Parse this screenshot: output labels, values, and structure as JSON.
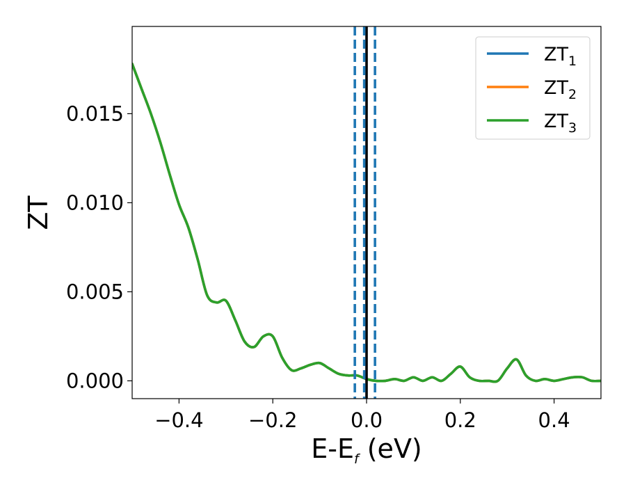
{
  "chart_data": {
    "type": "line",
    "xlabel": "E-E",
    "xlabel_sub": "f",
    "xlabel_unit": " (eV)",
    "ylabel": "ZT",
    "xlim": [
      -0.5,
      0.5
    ],
    "ylim": [
      -0.001,
      0.0199
    ],
    "xticks": [
      -0.4,
      -0.2,
      0.0,
      0.2,
      0.4
    ],
    "xtick_labels": [
      "−0.4",
      "−0.2",
      "0.0",
      "0.2",
      "0.4"
    ],
    "yticks": [
      0.0,
      0.005,
      0.01,
      0.015
    ],
    "ytick_labels": [
      "0.000",
      "0.005",
      "0.010",
      "0.015"
    ],
    "grid": false,
    "legend_position": "top-right",
    "x": [
      -0.5,
      -0.48,
      -0.46,
      -0.44,
      -0.42,
      -0.4,
      -0.38,
      -0.36,
      -0.34,
      -0.32,
      -0.3,
      -0.28,
      -0.26,
      -0.24,
      -0.22,
      -0.2,
      -0.18,
      -0.16,
      -0.14,
      -0.12,
      -0.1,
      -0.08,
      -0.06,
      -0.04,
      -0.02,
      0.0,
      0.02,
      0.04,
      0.06,
      0.08,
      0.1,
      0.12,
      0.14,
      0.16,
      0.18,
      0.2,
      0.22,
      0.24,
      0.26,
      0.28,
      0.3,
      0.32,
      0.34,
      0.36,
      0.38,
      0.4,
      0.42,
      0.44,
      0.46,
      0.48,
      0.5
    ],
    "series": [
      {
        "name": "ZT",
        "name_sub": "1",
        "color": "#1f77b4",
        "values": [
          0.0178,
          0.0164,
          0.015,
          0.0134,
          0.0116,
          0.0099,
          0.0086,
          0.0068,
          0.0048,
          0.0044,
          0.0045,
          0.0034,
          0.0022,
          0.0019,
          0.0025,
          0.0025,
          0.0013,
          0.0006,
          0.0007,
          0.0009,
          0.001,
          0.0007,
          0.0004,
          0.0003,
          0.0003,
          0.0001,
          0.0,
          0.0,
          0.0001,
          0.0,
          0.0002,
          0.0,
          0.0002,
          0.0,
          0.0004,
          0.0008,
          0.0002,
          0.0,
          0.0,
          0.0,
          0.0007,
          0.0012,
          0.0003,
          0.0,
          0.0001,
          0.0,
          0.0001,
          0.0002,
          0.0002,
          0.0,
          0.0
        ]
      },
      {
        "name": "ZT",
        "name_sub": "2",
        "color": "#ff7f0e",
        "values": [
          0.0178,
          0.0164,
          0.015,
          0.0134,
          0.0116,
          0.0099,
          0.0086,
          0.0068,
          0.0048,
          0.0044,
          0.0045,
          0.0034,
          0.0022,
          0.0019,
          0.0025,
          0.0025,
          0.0013,
          0.0006,
          0.0007,
          0.0009,
          0.001,
          0.0007,
          0.0004,
          0.0003,
          0.0003,
          0.0001,
          0.0,
          0.0,
          0.0001,
          0.0,
          0.0002,
          0.0,
          0.0002,
          0.0,
          0.0004,
          0.0008,
          0.0002,
          0.0,
          0.0,
          0.0,
          0.0007,
          0.0012,
          0.0003,
          0.0,
          0.0001,
          0.0,
          0.0001,
          0.0002,
          0.0002,
          0.0,
          0.0
        ]
      },
      {
        "name": "ZT",
        "name_sub": "3",
        "color": "#2ca02c",
        "values": [
          0.0178,
          0.0164,
          0.015,
          0.0134,
          0.0116,
          0.0099,
          0.0086,
          0.0068,
          0.0048,
          0.0044,
          0.0045,
          0.0034,
          0.0022,
          0.0019,
          0.0025,
          0.0025,
          0.0013,
          0.0006,
          0.0007,
          0.0009,
          0.001,
          0.0007,
          0.0004,
          0.0003,
          0.0003,
          0.0001,
          0.0,
          0.0,
          0.0001,
          0.0,
          0.0002,
          0.0,
          0.0002,
          0.0,
          0.0004,
          0.0008,
          0.0002,
          0.0,
          0.0,
          0.0,
          0.0007,
          0.0012,
          0.0003,
          0.0,
          0.0001,
          0.0,
          0.0001,
          0.0002,
          0.0002,
          0.0,
          0.0
        ]
      }
    ],
    "vlines": [
      {
        "x": 0.0,
        "style": "solid",
        "color": "#000000"
      },
      {
        "x": -0.025,
        "style": "dashed",
        "color": "#1f77b4"
      },
      {
        "x": -0.005,
        "style": "dashed",
        "color": "#1f77b4"
      },
      {
        "x": 0.018,
        "style": "dashed",
        "color": "#1f77b4"
      }
    ]
  }
}
